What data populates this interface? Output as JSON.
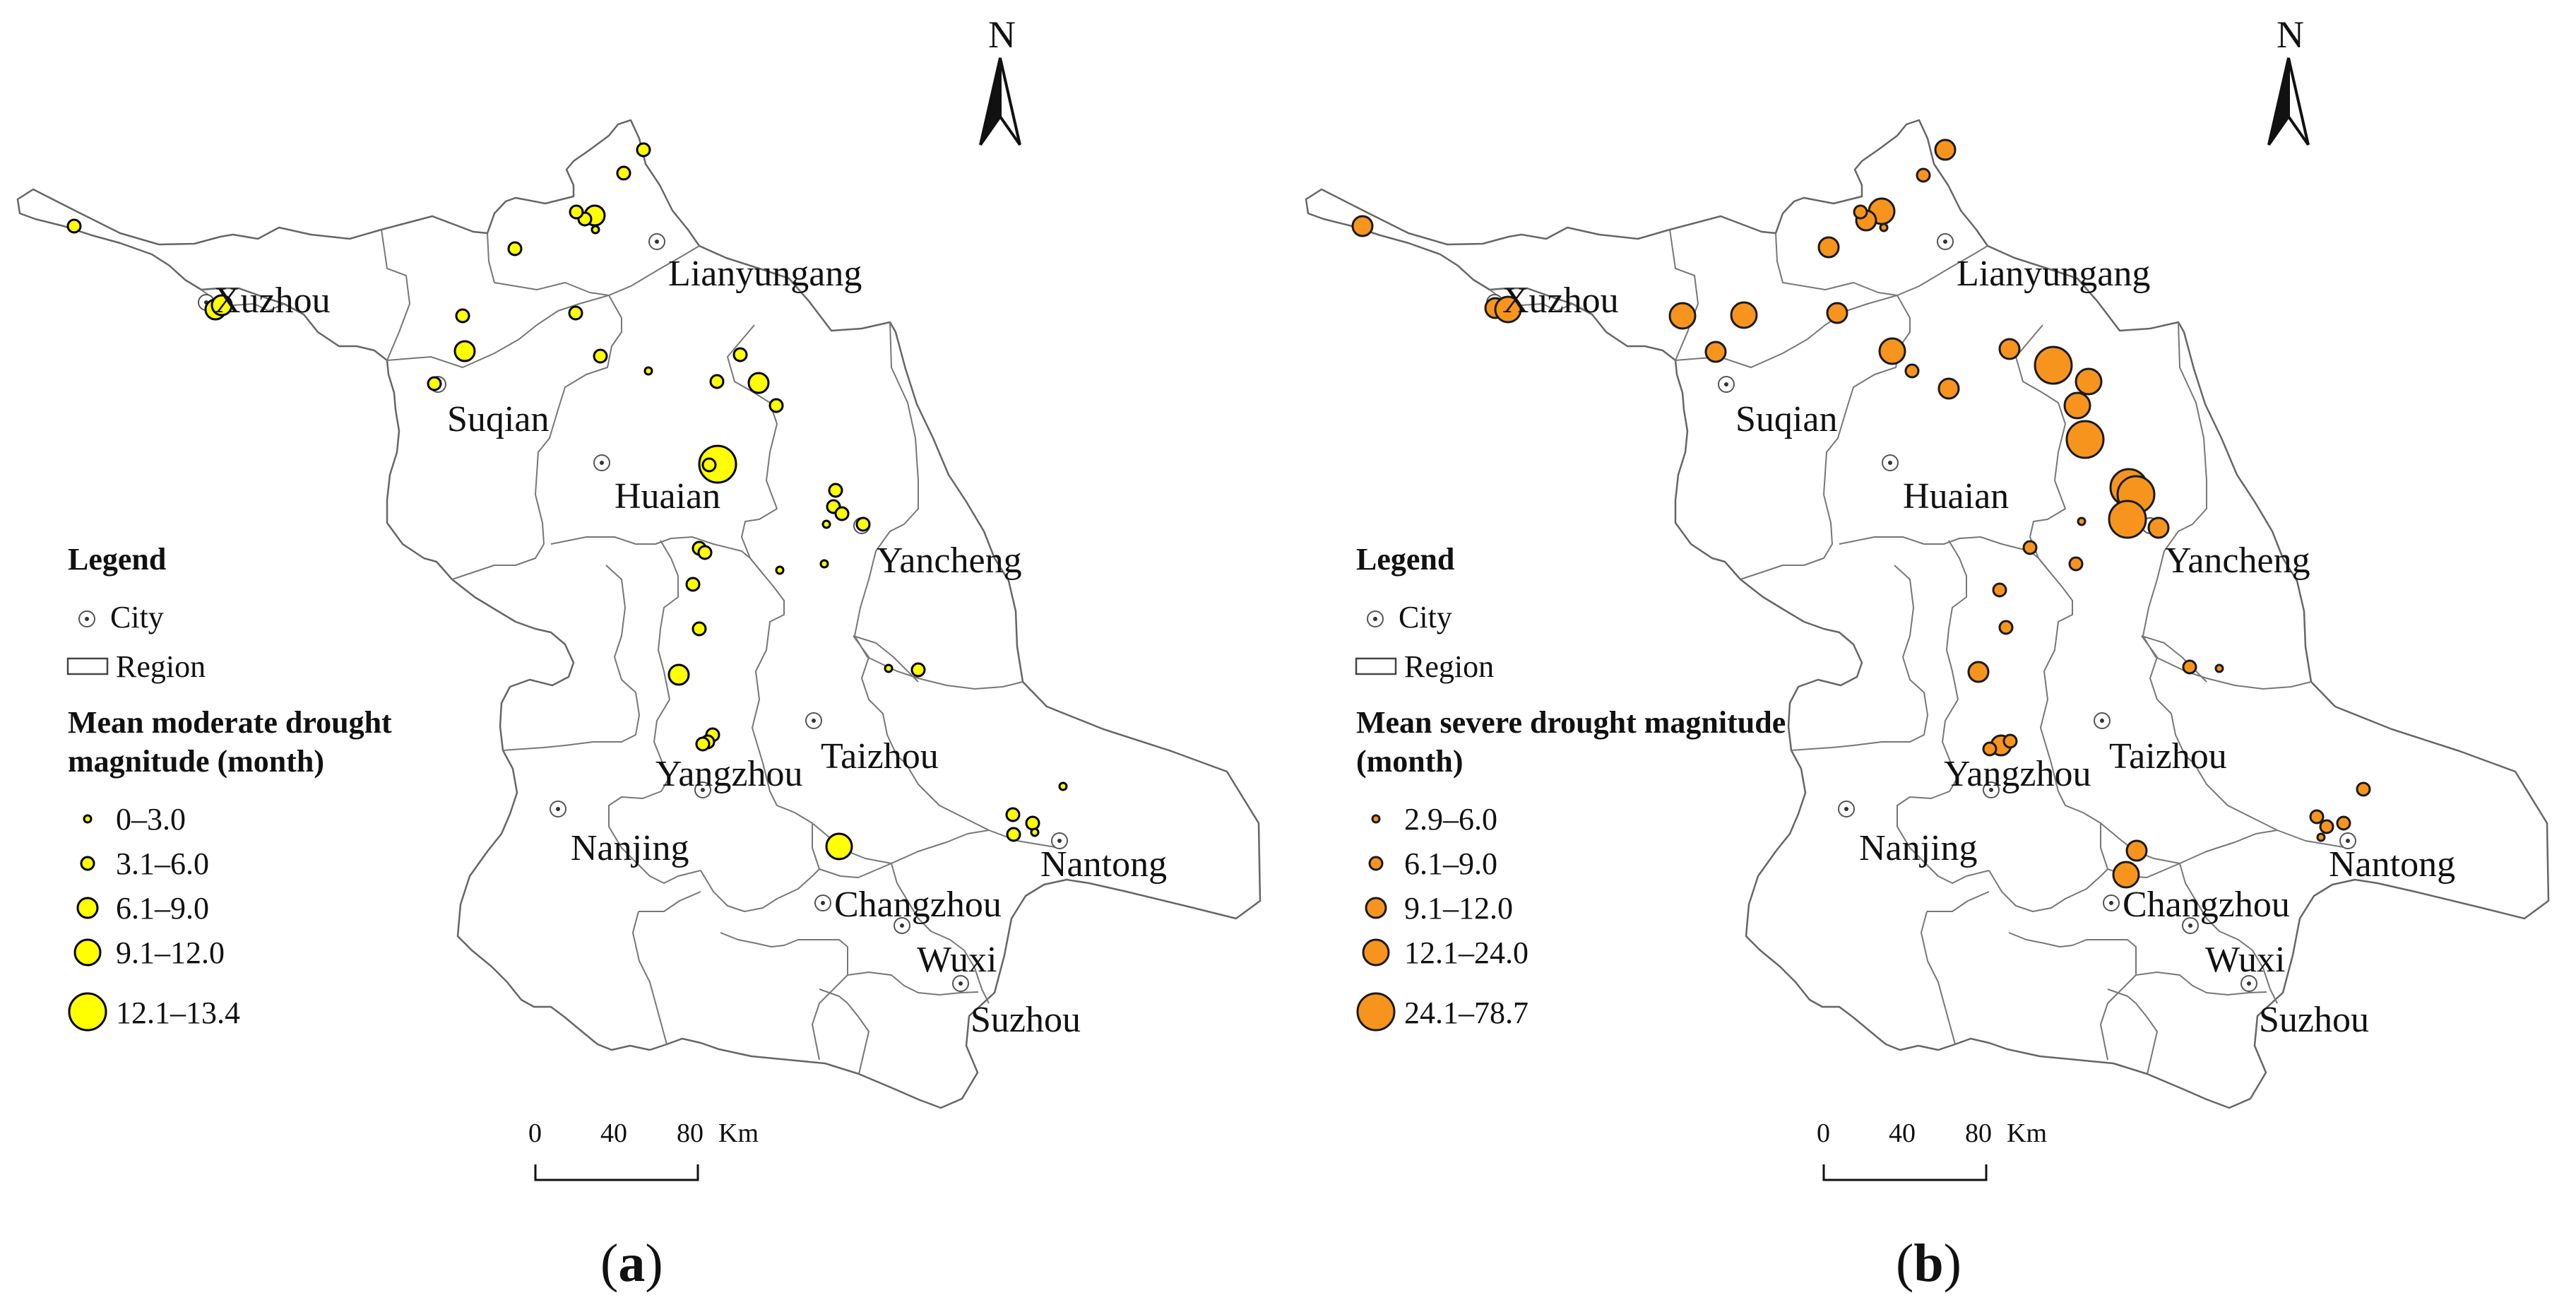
{
  "panels": [
    {
      "id": "a",
      "caption_letter": "a",
      "symbol_color": "#ffff00",
      "legend": {
        "title": "Legend",
        "city_label": "City",
        "region_label": "Region",
        "heading": "Mean moderate drought magnitude (month)",
        "classes": [
          "0–3.0",
          "3.1–6.0",
          "6.1–9.0",
          "9.1–12.0",
          "12.1–13.4"
        ]
      },
      "north_label": "N",
      "scale": {
        "ticks": [
          "0",
          "40",
          "80"
        ],
        "unit": "Km"
      },
      "station_classes": [
        2,
        3,
        3,
        2,
        2,
        1,
        3,
        2,
        2,
        2,
        2,
        2,
        3,
        2,
        2,
        1,
        2,
        2,
        3,
        2,
        5,
        2,
        2,
        2,
        2,
        1,
        2,
        1,
        1,
        2,
        2,
        2,
        2,
        3,
        2,
        2,
        2,
        1,
        2,
        2,
        2,
        1,
        2,
        1,
        4
      ]
    },
    {
      "id": "b",
      "caption_letter": "b",
      "symbol_color": "#f7941d",
      "legend": {
        "title": "Legend",
        "city_label": "City",
        "region_label": "Region",
        "heading": "Mean severe drought magnitude (month)",
        "classes": [
          "2.9–6.0",
          "6.1–9.0",
          "9.1–12.0",
          "12.1–24.0",
          "24.1–78.7"
        ]
      },
      "north_label": "N",
      "scale": {
        "ticks": [
          "0",
          "40",
          "80"
        ],
        "unit": "Km"
      },
      "station_classes": [
        3,
        3,
        4,
        4,
        3,
        1,
        4,
        3,
        2,
        3,
        2,
        3,
        4,
        3,
        4,
        2,
        3,
        3,
        5,
        4,
        4,
        5,
        5,
        5,
        5,
        1,
        3,
        2,
        2,
        2,
        2,
        3,
        3,
        2,
        2,
        2,
        1,
        2,
        2,
        2,
        1,
        2,
        4,
        2,
        3
      ]
    }
  ],
  "cities": [
    "Lianyungang",
    "Xuzhou",
    "Suqian",
    "Huaian",
    "Yancheng",
    "Yangzhou",
    "Taizhou",
    "Nanjing",
    "Nantong",
    "Changzhou",
    "Wuxi",
    "Suzhou"
  ]
}
